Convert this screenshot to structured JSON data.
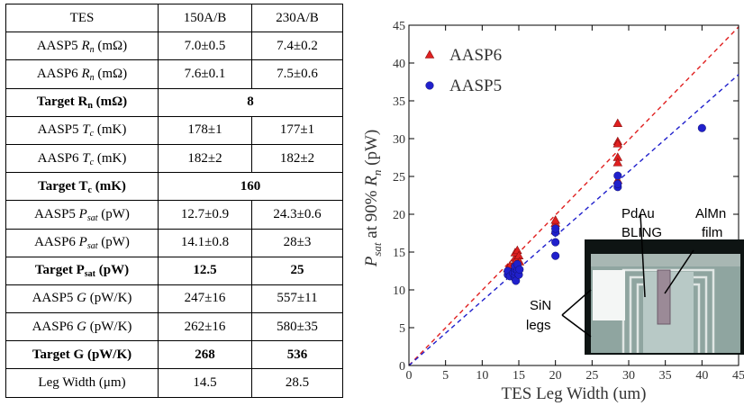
{
  "table": {
    "header": [
      "TES",
      "150A/B",
      "230A/B"
    ],
    "rows": [
      {
        "label": "AASP5 R_n (mΩ)",
        "values": [
          "7.0±0.5",
          "7.4±0.2"
        ],
        "bold": false
      },
      {
        "label": "AASP6 R_n (mΩ)",
        "values": [
          "7.6±0.1",
          "7.5±0.6"
        ],
        "bold": false
      },
      {
        "label": "Target R_n (mΩ)",
        "values": [
          "8"
        ],
        "bold": true,
        "span": true
      },
      {
        "label": "AASP5 T_c (mK)",
        "values": [
          "178±1",
          "177±1"
        ],
        "bold": false
      },
      {
        "label": "AASP6 T_c (mK)",
        "values": [
          "182±2",
          "182±2"
        ],
        "bold": false
      },
      {
        "label": "Target T_c (mK)",
        "values": [
          "160"
        ],
        "bold": true,
        "span": true
      },
      {
        "label": "AASP5 P_sat (pW)",
        "values": [
          "12.7±0.9",
          "24.3±0.6"
        ],
        "bold": false
      },
      {
        "label": "AASP6 P_sat (pW)",
        "values": [
          "14.1±0.8",
          "28±3"
        ],
        "bold": false
      },
      {
        "label": "Target P_sat (pW)",
        "values": [
          "12.5",
          "25"
        ],
        "bold": true
      },
      {
        "label": "AASP5 G (pW/K)",
        "values": [
          "247±16",
          "557±11"
        ],
        "bold": false
      },
      {
        "label": "AASP6 G (pW/K)",
        "values": [
          "262±16",
          "580±35"
        ],
        "bold": false
      },
      {
        "label": "Target G (pW/K)",
        "values": [
          "268",
          "536"
        ],
        "bold": true
      },
      {
        "label": "Leg Width (μm)",
        "values": [
          "14.5",
          "28.5"
        ],
        "bold": false
      }
    ]
  },
  "chart_data": {
    "type": "scatter",
    "xlabel": "TES Leg Width (um)",
    "ylabel": "P_sat at 90% R_n (pW)",
    "xlim": [
      0,
      45
    ],
    "ylim": [
      0,
      45
    ],
    "xticks": [
      0,
      5,
      10,
      15,
      20,
      25,
      30,
      35,
      40,
      45
    ],
    "yticks": [
      0,
      5,
      10,
      15,
      20,
      25,
      30,
      35,
      40,
      45
    ],
    "legend_position": "top-left",
    "series": [
      {
        "name": "AASP6",
        "marker": "triangle",
        "color": "#e02020",
        "fit_slope": 0.995,
        "points": [
          [
            13.5,
            12.8
          ],
          [
            13.8,
            13.2
          ],
          [
            14.2,
            12.5
          ],
          [
            14.5,
            14.2
          ],
          [
            14.5,
            13.6
          ],
          [
            14.5,
            14.9
          ],
          [
            14.6,
            13.9
          ],
          [
            14.6,
            13.3
          ],
          [
            14.8,
            13.0
          ],
          [
            14.8,
            15.2
          ],
          [
            15.0,
            12.9
          ],
          [
            15.0,
            14.5
          ],
          [
            15.1,
            13.7
          ],
          [
            20.0,
            18.8
          ],
          [
            20.0,
            19.2
          ],
          [
            20.0,
            17.8
          ],
          [
            28.5,
            32.0
          ],
          [
            28.5,
            29.6
          ],
          [
            28.5,
            29.3
          ],
          [
            28.5,
            27.5
          ],
          [
            28.5,
            26.8
          ],
          [
            28.5,
            24.5
          ]
        ]
      },
      {
        "name": "AASP5",
        "marker": "circle",
        "color": "#2020cc",
        "fit_slope": 0.855,
        "points": [
          [
            13.5,
            12.0
          ],
          [
            13.5,
            12.5
          ],
          [
            13.8,
            11.8
          ],
          [
            14.2,
            12.2
          ],
          [
            14.5,
            11.5
          ],
          [
            14.5,
            12.0
          ],
          [
            14.5,
            12.4
          ],
          [
            14.5,
            12.8
          ],
          [
            14.5,
            13.1
          ],
          [
            14.6,
            11.2
          ],
          [
            14.8,
            12.6
          ],
          [
            14.8,
            13.4
          ],
          [
            15.0,
            12.0
          ],
          [
            15.1,
            12.7
          ],
          [
            20.0,
            14.5
          ],
          [
            20.0,
            16.3
          ],
          [
            20.0,
            17.6
          ],
          [
            20.0,
            18.1
          ],
          [
            28.5,
            23.6
          ],
          [
            28.5,
            24.0
          ],
          [
            28.5,
            25.1
          ],
          [
            40.0,
            31.4
          ]
        ]
      }
    ]
  },
  "inset": {
    "labels": {
      "pdau_line1": "PdAu",
      "pdau_line2": "BLING",
      "almn_line1": "AlMn",
      "almn_line2": "film",
      "sin_line1": "SiN",
      "sin_line2": "legs"
    }
  }
}
